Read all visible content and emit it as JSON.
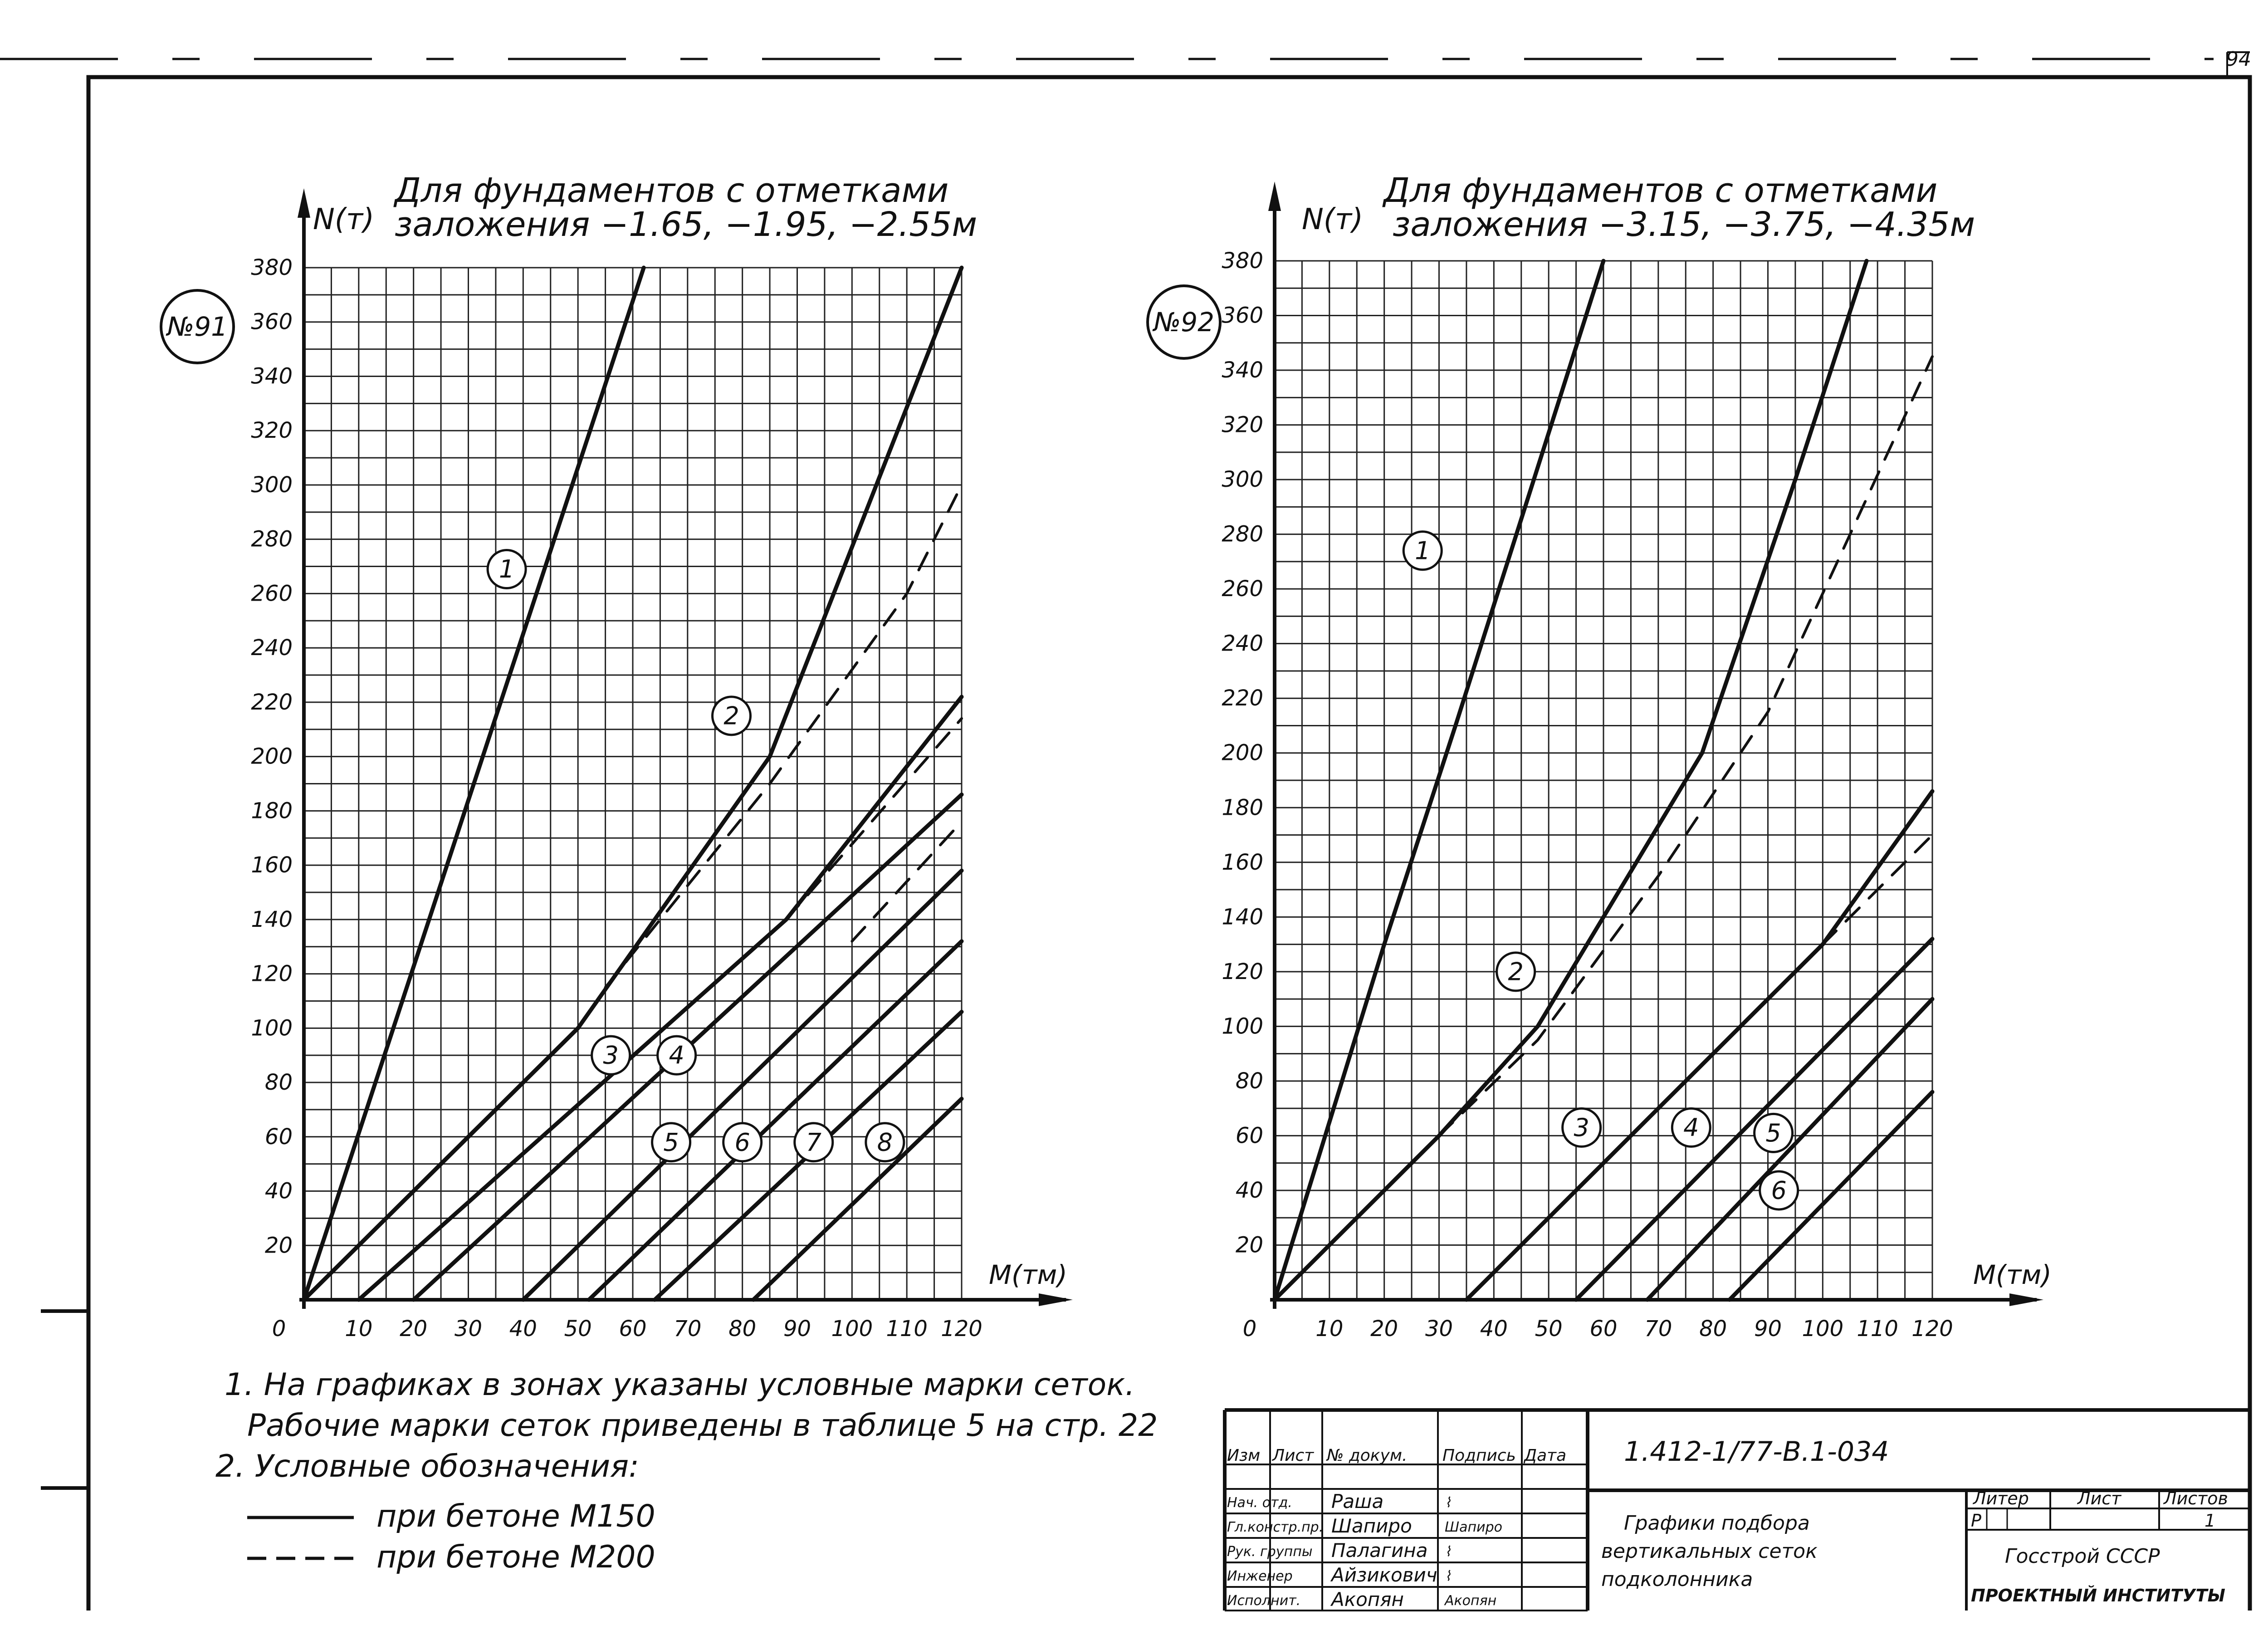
{
  "sheet_number": "94",
  "chart_data": [
    {
      "type": "line",
      "tag": "№91",
      "title_lines": [
        "Для фундаментов с отметками",
        "заложения −1.65, −1.95, −2.55м"
      ],
      "ylabel": "N(т)",
      "xlabel": "М(тм)",
      "xlim": [
        0,
        120
      ],
      "ylim": [
        0,
        380
      ],
      "xticks": [
        0,
        10,
        20,
        30,
        40,
        50,
        60,
        70,
        80,
        90,
        100,
        110,
        120
      ],
      "yticks": [
        0,
        20,
        40,
        60,
        80,
        100,
        120,
        140,
        160,
        180,
        200,
        220,
        240,
        260,
        280,
        300,
        320,
        340,
        360,
        380
      ],
      "grid": true,
      "series": [
        {
          "dashed": false,
          "points": [
            [
              0,
              0
            ],
            [
              62,
              380
            ]
          ]
        },
        {
          "dashed": false,
          "points": [
            [
              0,
              0
            ],
            [
              50,
              100
            ],
            [
              85,
              200
            ],
            [
              120,
              380
            ]
          ]
        },
        {
          "dashed": true,
          "points": [
            [
              55,
              115
            ],
            [
              85,
              190
            ],
            [
              110,
              260
            ],
            [
              120,
              300
            ]
          ]
        },
        {
          "dashed": false,
          "points": [
            [
              0,
              0
            ],
            [
              50,
              100
            ]
          ]
        },
        {
          "dashed": false,
          "points": [
            [
              10,
              0
            ],
            [
              88,
              140
            ],
            [
              120,
              222
            ]
          ]
        },
        {
          "dashed": true,
          "points": [
            [
              88,
              140
            ],
            [
              120,
              214
            ]
          ]
        },
        {
          "dashed": false,
          "points": [
            [
              20,
              0
            ],
            [
              120,
              186
            ]
          ]
        },
        {
          "dashed": true,
          "points": [
            [
              100,
              132
            ],
            [
              120,
              176
            ]
          ]
        },
        {
          "dashed": false,
          "points": [
            [
              40,
              0
            ],
            [
              120,
              158
            ]
          ]
        },
        {
          "dashed": false,
          "points": [
            [
              52,
              0
            ],
            [
              120,
              132
            ]
          ]
        },
        {
          "dashed": false,
          "points": [
            [
              64,
              0
            ],
            [
              120,
              106
            ]
          ]
        },
        {
          "dashed": false,
          "points": [
            [
              82,
              0
            ],
            [
              120,
              74
            ]
          ]
        }
      ],
      "zones": [
        {
          "label": "1",
          "x": 37,
          "y": 269
        },
        {
          "label": "2",
          "x": 78,
          "y": 215
        },
        {
          "label": "3",
          "x": 56,
          "y": 90
        },
        {
          "label": "4",
          "x": 68,
          "y": 90
        },
        {
          "label": "5",
          "x": 67,
          "y": 58
        },
        {
          "label": "6",
          "x": 80,
          "y": 58
        },
        {
          "label": "7",
          "x": 93,
          "y": 58
        },
        {
          "label": "8",
          "x": 106,
          "y": 58
        }
      ]
    },
    {
      "type": "line",
      "tag": "№92",
      "title_lines": [
        "Для фундаментов с отметками",
        "заложения −3.15, −3.75, −4.35м"
      ],
      "ylabel": "N(т)",
      "xlabel": "М(тм)",
      "xlim": [
        0,
        120
      ],
      "ylim": [
        0,
        380
      ],
      "xticks": [
        0,
        10,
        20,
        30,
        40,
        50,
        60,
        70,
        80,
        90,
        100,
        110,
        120
      ],
      "yticks": [
        0,
        20,
        40,
        60,
        80,
        100,
        120,
        140,
        160,
        180,
        200,
        220,
        240,
        260,
        280,
        300,
        320,
        340,
        360,
        380
      ],
      "grid": true,
      "series": [
        {
          "dashed": false,
          "points": [
            [
              0,
              0
            ],
            [
              20,
              130
            ],
            [
              33,
              210
            ],
            [
              60,
              380
            ]
          ]
        },
        {
          "dashed": false,
          "points": [
            [
              0,
              0
            ],
            [
              30,
              60
            ],
            [
              48,
              100
            ],
            [
              78,
              200
            ],
            [
              95,
              300
            ],
            [
              108,
              380
            ]
          ]
        },
        {
          "dashed": true,
          "points": [
            [
              30,
              60
            ],
            [
              48,
              95
            ],
            [
              70,
              155
            ],
            [
              90,
              215
            ],
            [
              105,
              280
            ],
            [
              120,
              345
            ]
          ]
        },
        {
          "dashed": false,
          "points": [
            [
              35,
              0
            ],
            [
              100,
              130
            ],
            [
              120,
              186
            ]
          ]
        },
        {
          "dashed": true,
          "points": [
            [
              100,
              130
            ],
            [
              120,
              170
            ]
          ]
        },
        {
          "dashed": false,
          "points": [
            [
              55,
              0
            ],
            [
              120,
              132
            ]
          ]
        },
        {
          "dashed": false,
          "points": [
            [
              68,
              0
            ],
            [
              120,
              110
            ]
          ]
        },
        {
          "dashed": false,
          "points": [
            [
              83,
              0
            ],
            [
              120,
              76
            ]
          ]
        }
      ],
      "zones": [
        {
          "label": "1",
          "x": 27,
          "y": 274
        },
        {
          "label": "2",
          "x": 44,
          "y": 120
        },
        {
          "label": "3",
          "x": 56,
          "y": 63
        },
        {
          "label": "4",
          "x": 76,
          "y": 63
        },
        {
          "label": "5",
          "x": 91,
          "y": 61
        },
        {
          "label": "6",
          "x": 92,
          "y": 40
        }
      ]
    }
  ],
  "notes": {
    "n1a": "1. На графиках в зонах указаны условные марки сеток.",
    "n1b": "Рабочие марки сеток приведены в таблице 5   на стр. 22",
    "n2": "2. Условные   обозначения:",
    "legend": [
      {
        "text": "при   бетоне     М150",
        "dashed": false
      },
      {
        "text": "при   бетоне     М200",
        "dashed": true
      }
    ]
  },
  "title_block": {
    "headers": [
      "Изм",
      "Лист",
      "№ докум.",
      "Подпись",
      "Дата"
    ],
    "roles": [
      "Нач. отд.",
      "Гл.констр.пр.",
      "Рук. группы",
      "Инженер",
      "Исполнит."
    ],
    "names": [
      "Раша",
      "Шапиро",
      "Палагина",
      "Айзикович",
      "Акопян"
    ],
    "signatures": [
      "⌇",
      "Шапиро",
      "⌇",
      "⌇",
      "Акопян"
    ],
    "code": "1.412-1/77-В.1-034",
    "caption": [
      "Графики  подбора",
      "вертикальных  сеток",
      "подколонника"
    ],
    "liter_label": "Литер",
    "sheet_label": "Лист",
    "sheets_label": "Листов",
    "liter": "Р",
    "sheets": "1",
    "org": [
      "Госстрой СССР",
      "ПРОЕКТНЫЙ ИНСТИТУТЫ"
    ]
  }
}
